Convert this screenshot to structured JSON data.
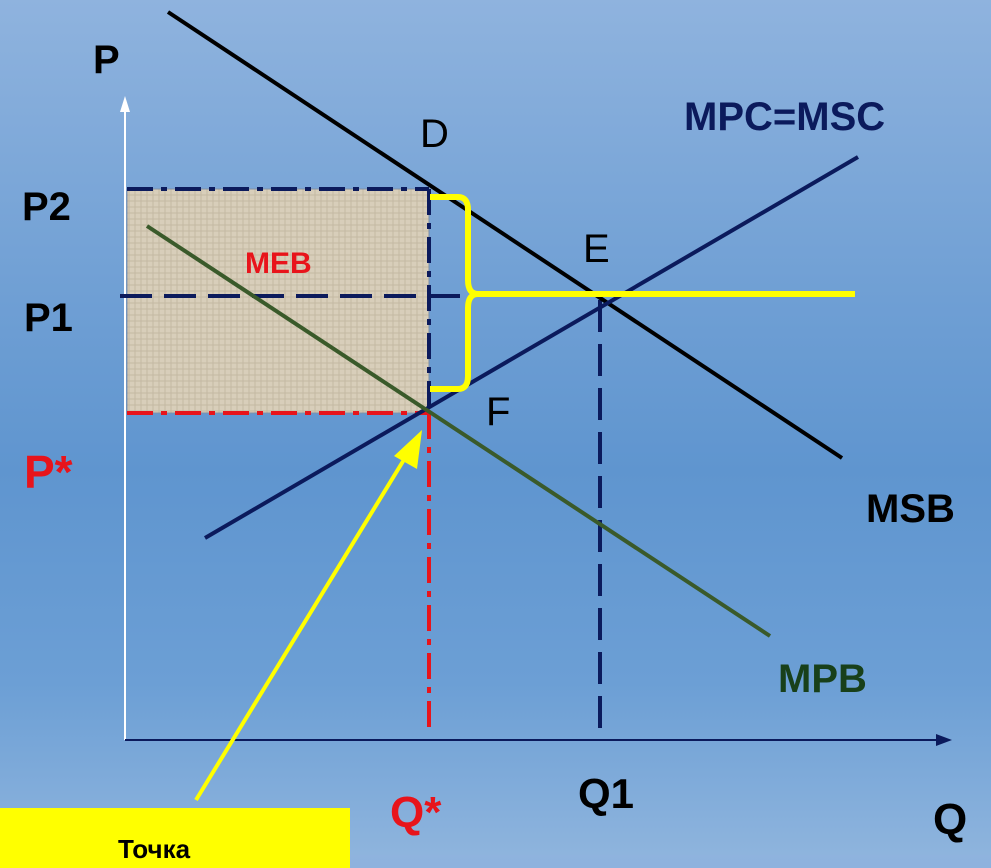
{
  "axes": {
    "y_label": "P",
    "x_label": "Q"
  },
  "price_labels": {
    "p2": "P2",
    "p1": "P1",
    "p_star": "P*"
  },
  "quantity_labels": {
    "q_star": "Q*",
    "q1": "Q1"
  },
  "points": {
    "d": "D",
    "e": "E",
    "f": "F"
  },
  "curves": {
    "supply": "MPC=MSC",
    "social_benefit": "MSB",
    "private_benefit": "MPB"
  },
  "area_label": "MEB",
  "callout_text": "Точка",
  "colors": {
    "navy": "#0b1a5c",
    "green": "#3a5a2a",
    "red": "#e8141b",
    "yellow": "#ffff00",
    "area_fill": "#d6cbb6"
  }
}
